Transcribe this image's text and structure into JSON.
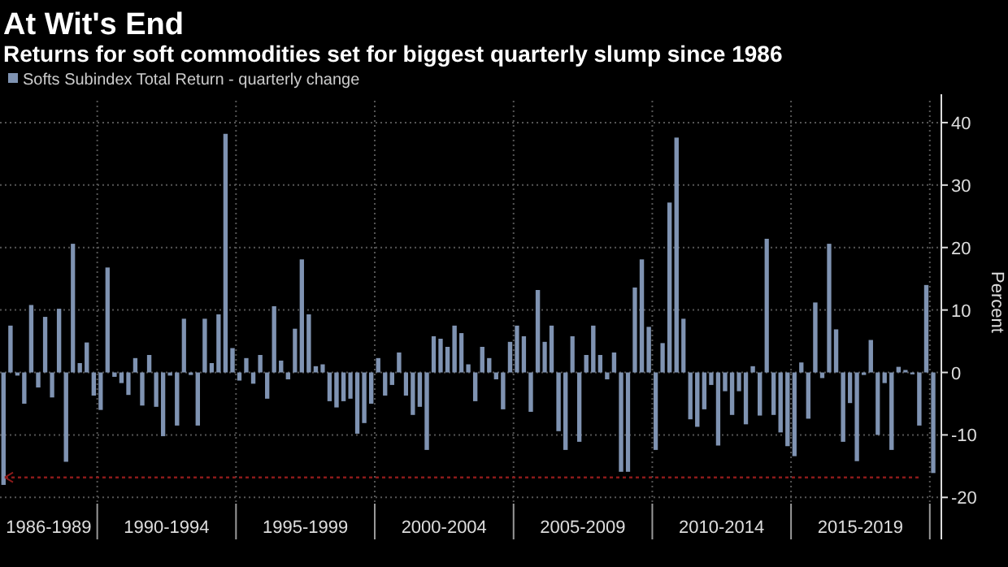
{
  "chart_data": {
    "type": "bar",
    "title": "At Wit's End",
    "subtitle": "Returns for soft commodities set for biggest quarterly slump since 1986",
    "ylabel": "Percent",
    "x": [
      "1986-07",
      "1986-10",
      "1987-01",
      "1987-04",
      "1987-07",
      "1987-10",
      "1988-01",
      "1988-04",
      "1988-07",
      "1988-10",
      "1989-01",
      "1989-04",
      "1989-07",
      "1989-10",
      "1990-01",
      "1990-04",
      "1990-07",
      "1990-10",
      "1991-01",
      "1991-04",
      "1991-07",
      "1991-10",
      "1992-01",
      "1992-04",
      "1992-07",
      "1992-10",
      "1993-01",
      "1993-04",
      "1993-07",
      "1993-10",
      "1994-01",
      "1994-04",
      "1994-07",
      "1994-10",
      "1995-01",
      "1995-04",
      "1995-07",
      "1995-10",
      "1996-01",
      "1996-04",
      "1996-07",
      "1996-10",
      "1997-01",
      "1997-04",
      "1997-07",
      "1997-10",
      "1998-01",
      "1998-04",
      "1998-07",
      "1998-10",
      "1999-01",
      "1999-04",
      "1999-07",
      "1999-10",
      "2000-01",
      "2000-04",
      "2000-07",
      "2000-10",
      "2001-01",
      "2001-04",
      "2001-07",
      "2001-10",
      "2002-01",
      "2002-04",
      "2002-07",
      "2002-10",
      "2003-01",
      "2003-04",
      "2003-07",
      "2003-10",
      "2004-01",
      "2004-04",
      "2004-07",
      "2004-10",
      "2005-01",
      "2005-04",
      "2005-07",
      "2005-10",
      "2006-01",
      "2006-04",
      "2006-07",
      "2006-10",
      "2007-01",
      "2007-04",
      "2007-07",
      "2007-10",
      "2008-01",
      "2008-04",
      "2008-07",
      "2008-10",
      "2009-01",
      "2009-04",
      "2009-07",
      "2009-10",
      "2010-01",
      "2010-04",
      "2010-07",
      "2010-10",
      "2011-01",
      "2011-04",
      "2011-07",
      "2011-10",
      "2012-01",
      "2012-04",
      "2012-07",
      "2012-10",
      "2013-01",
      "2013-04",
      "2013-07",
      "2013-10",
      "2014-01",
      "2014-04",
      "2014-07",
      "2014-10",
      "2015-01",
      "2015-04",
      "2015-07",
      "2015-10",
      "2016-01",
      "2016-04",
      "2016-07",
      "2016-10",
      "2017-01",
      "2017-04",
      "2017-07",
      "2017-10",
      "2018-01",
      "2018-04",
      "2018-07",
      "2018-10",
      "2019-01",
      "2019-04",
      "2019-07",
      "2019-10",
      "2020-01"
    ],
    "series": [
      {
        "name": "Softs Subindex Total Return - quarterly change",
        "color": "#7f93b2",
        "values": [
          -18,
          7.5,
          -0.5,
          -5,
          10.8,
          -2.4,
          8.9,
          -4,
          10.2,
          -14.3,
          20.6,
          1.5,
          4.8,
          -3.7,
          -6,
          16.8,
          -0.7,
          -1.7,
          -3.6,
          2.3,
          -5.3,
          2.8,
          -5.5,
          -10.2,
          -0.5,
          -8.5,
          8.6,
          -0.4,
          -8.5,
          8.6,
          1.5,
          9.3,
          38.2,
          3.9,
          -1.3,
          2.3,
          -1.8,
          2.8,
          -4.2,
          10.6,
          1.9,
          -1.1,
          7,
          18.1,
          9.3,
          1,
          1.3,
          -4.6,
          -5.6,
          -4.6,
          -4.2,
          -9.8,
          -8.1,
          -5,
          2.3,
          -3.7,
          -2,
          3.2,
          -3.7,
          -6.8,
          -5.5,
          -12.4,
          5.8,
          5.4,
          4.1,
          7.5,
          6.3,
          1.3,
          -4.6,
          4.1,
          2.3,
          -1.1,
          -5.9,
          4.9,
          7.5,
          5.8,
          -6.3,
          13.2,
          4.9,
          7.5,
          -9.4,
          -12.4,
          5.8,
          -11.1,
          2.8,
          7.5,
          2.8,
          -1.1,
          3.2,
          -15.9,
          -15.9,
          13.6,
          18.1,
          7.3,
          -12.4,
          4.7,
          27.2,
          37.6,
          8.6,
          -7.5,
          -8.7,
          -5.9,
          -2,
          -11.7,
          -3,
          -6.8,
          -3,
          -8.3,
          1,
          -6.9,
          21.4,
          -6.8,
          -9.6,
          -11.8,
          -13.4,
          1.6,
          -7.4,
          11.2,
          -0.9,
          20.6,
          6.9,
          -11.1,
          -4.9,
          -14.2,
          -0.4,
          5.2,
          -10,
          -1.7,
          -12.4,
          0.9,
          0.4,
          -0.3,
          -8.5,
          14,
          -16.1
        ]
      }
    ],
    "xlim": [
      "1986-07",
      "2020-06"
    ],
    "xticks": [
      {
        "value": "1988-04",
        "label": "1986-1989"
      },
      {
        "value": "1990-01",
        "label": null
      },
      {
        "value": "1992-07",
        "label": "1990-1994"
      },
      {
        "value": "1995-01",
        "label": null
      },
      {
        "value": "1997-07",
        "label": "1995-1999"
      },
      {
        "value": "2000-01",
        "label": null
      },
      {
        "value": "2002-07",
        "label": "2000-2004"
      },
      {
        "value": "2005-01",
        "label": null
      },
      {
        "value": "2007-07",
        "label": "2005-2009"
      },
      {
        "value": "2010-01",
        "label": null
      },
      {
        "value": "2012-07",
        "label": "2010-2014"
      },
      {
        "value": "2015-01",
        "label": null
      },
      {
        "value": "2017-07",
        "label": "2015-2019"
      },
      {
        "value": "2020-01",
        "label": null
      }
    ],
    "ylim": [
      -21,
      43.5
    ],
    "yticks": [
      -20,
      -10,
      0,
      10,
      20,
      30,
      40
    ],
    "grid": true,
    "legend": "top left",
    "ref_lines": [
      {
        "axis": "y",
        "value": -16.8,
        "label": null,
        "color": "#8b1a1a",
        "line_style": "dotted"
      }
    ]
  }
}
